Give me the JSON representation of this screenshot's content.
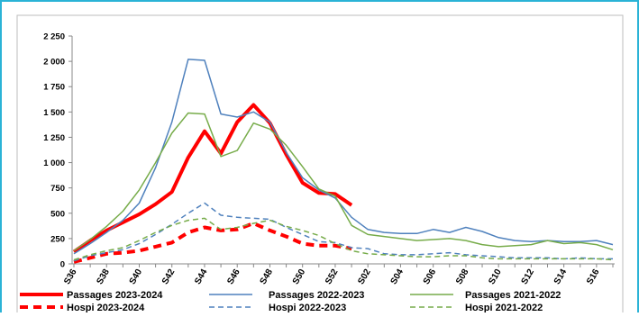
{
  "chart_data": {
    "type": "line",
    "categories": [
      "S36",
      null,
      "S38",
      null,
      "S40",
      null,
      "S42",
      null,
      "S44",
      null,
      "S46",
      null,
      "S48",
      null,
      "S50",
      null,
      "S52",
      null,
      "S02",
      null,
      "S04",
      null,
      "S06",
      null,
      "S08",
      null,
      "S10",
      null,
      "S12",
      null,
      "S14",
      null,
      "S16",
      null
    ],
    "ylim": [
      0,
      2250
    ],
    "yticks": [
      0,
      250,
      500,
      750,
      {
        "value": 1000,
        "label": "1 000"
      },
      {
        "value": 1250,
        "label": "1 250"
      },
      {
        "value": 1500,
        "label": "1 500"
      },
      {
        "value": 1750,
        "label": "1 750"
      },
      {
        "value": 2000,
        "label": "2 000"
      },
      {
        "value": 2250,
        "label": "2 250"
      }
    ],
    "grid": false,
    "legend": "bottom",
    "series": [
      {
        "name": "Passages 2023-2024",
        "color": "#ff0000",
        "line_width": 4,
        "dashed": false,
        "values": [
          120,
          230,
          330,
          410,
          490,
          590,
          710,
          1050,
          1310,
          1090,
          1400,
          1570,
          1390,
          1080,
          800,
          700,
          690,
          580,
          null,
          null,
          null,
          null,
          null,
          null,
          null,
          null,
          null,
          null,
          null,
          null,
          null,
          null,
          null,
          null
        ]
      },
      {
        "name": "Passages 2022-2023",
        "color": "#4f81bd",
        "line_width": 1.5,
        "dashed": false,
        "values": [
          100,
          200,
          310,
          430,
          600,
          950,
          1400,
          2020,
          2010,
          1480,
          1450,
          1500,
          1400,
          1100,
          850,
          730,
          650,
          460,
          340,
          310,
          300,
          300,
          340,
          310,
          360,
          320,
          260,
          230,
          220,
          230,
          220,
          220,
          230,
          190
        ]
      },
      {
        "name": "Passages 2021-2022",
        "color": "#77ac4a",
        "line_width": 1.5,
        "dashed": false,
        "values": [
          130,
          240,
          370,
          520,
          730,
          1000,
          1290,
          1490,
          1480,
          1060,
          1120,
          1390,
          1330,
          1170,
          960,
          740,
          670,
          380,
          290,
          270,
          250,
          230,
          240,
          250,
          230,
          190,
          170,
          180,
          190,
          230,
          200,
          210,
          190,
          140
        ]
      },
      {
        "name": "Hospi 2023-2024",
        "color": "#ff0000",
        "line_width": 4,
        "dashed": true,
        "values": [
          20,
          60,
          100,
          110,
          130,
          170,
          210,
          310,
          360,
          330,
          340,
          400,
          330,
          270,
          200,
          180,
          180,
          150,
          null,
          null,
          null,
          null,
          null,
          null,
          null,
          null,
          null,
          null,
          null,
          null,
          null,
          null,
          null,
          null
        ]
      },
      {
        "name": "Hospi 2022-2023",
        "color": "#4f81bd",
        "line_width": 1.5,
        "dashed": true,
        "values": [
          30,
          80,
          110,
          140,
          200,
          290,
          390,
          500,
          600,
          480,
          460,
          450,
          440,
          360,
          290,
          220,
          210,
          160,
          150,
          100,
          90,
          90,
          100,
          110,
          90,
          80,
          70,
          60,
          60,
          60,
          50,
          60,
          50,
          50
        ]
      },
      {
        "name": "Hospi 2021-2022",
        "color": "#77ac4a",
        "line_width": 1.5,
        "dashed": true,
        "values": [
          40,
          90,
          130,
          160,
          230,
          310,
          380,
          430,
          450,
          340,
          360,
          400,
          430,
          370,
          330,
          280,
          200,
          130,
          100,
          90,
          80,
          70,
          70,
          80,
          80,
          60,
          50,
          50,
          50,
          50,
          50,
          50,
          50,
          40
        ]
      }
    ]
  }
}
